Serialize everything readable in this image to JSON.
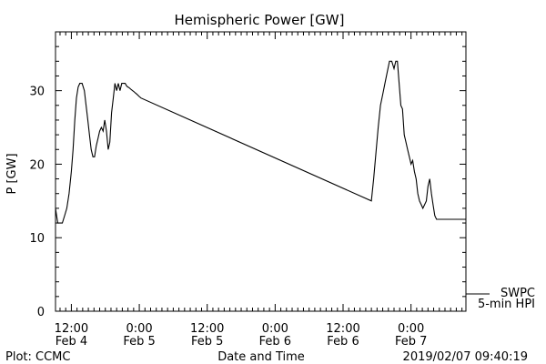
{
  "chart_data": {
    "type": "line",
    "title": "Hemispheric Power [GW]",
    "xlabel": "Date and Time",
    "ylabel": "P [GW]",
    "x_unit": "hours since 2019-02-04 00:00 UTC",
    "xlim": [
      9.2,
      81.7
    ],
    "ylim": [
      0,
      38
    ],
    "y_ticks": [
      0,
      10,
      20,
      30
    ],
    "x_ticks": [
      {
        "x": 12,
        "time": "12:00",
        "date": "Feb 4"
      },
      {
        "x": 24,
        "time": "0:00",
        "date": "Feb 5"
      },
      {
        "x": 36,
        "time": "12:00",
        "date": "Feb 5"
      },
      {
        "x": 48,
        "time": "0:00",
        "date": "Feb 6"
      },
      {
        "x": 60,
        "time": "12:00",
        "date": "Feb 6"
      },
      {
        "x": 72,
        "time": "0:00",
        "date": "Feb 7"
      }
    ],
    "legend": [
      {
        "label": "SWPC",
        "style": "line"
      },
      {
        "label": "5-min HPI",
        "style": "none"
      }
    ],
    "series": [
      {
        "name": "SWPC",
        "color": "#000000",
        "x": [
          9.2,
          9.4,
          9.6,
          10.0,
          10.4,
          10.8,
          11.2,
          11.6,
          12.0,
          12.3,
          12.6,
          12.9,
          13.2,
          13.5,
          13.9,
          14.3,
          14.6,
          14.9,
          15.2,
          15.5,
          15.8,
          16.1,
          16.4,
          16.7,
          17.0,
          17.3,
          17.6,
          17.9,
          18.2,
          18.5,
          18.8,
          19.1,
          19.4,
          19.7,
          20.0,
          20.3,
          20.6,
          20.9,
          21.2,
          21.5,
          21.8,
          22.0,
          22.2,
          22.5,
          22.8,
          23.0,
          23.3,
          23.6,
          24.0,
          24.3,
          65.0,
          65.4,
          65.8,
          66.2,
          66.6,
          67.0,
          67.4,
          67.8,
          68.2,
          68.6,
          69.0,
          69.3,
          69.6,
          69.9,
          70.2,
          70.5,
          70.8,
          71.1,
          71.4,
          71.7,
          72.0,
          72.3,
          72.6,
          72.9,
          73.2,
          73.5,
          73.8,
          74.1,
          74.4,
          74.7,
          75.0,
          75.3,
          75.6,
          75.9,
          76.2,
          76.5,
          76.8,
          77.1,
          77.4,
          77.7,
          78.0,
          78.3,
          78.6,
          78.9,
          79.2,
          79.5,
          79.8,
          80.1,
          80.4,
          80.7,
          81.0,
          81.3,
          81.7
        ],
        "y": [
          14,
          13,
          12,
          12,
          12,
          13,
          14,
          16,
          19,
          22,
          26,
          29,
          30.5,
          31,
          31,
          30,
          28,
          26,
          24,
          22,
          21,
          21,
          22.5,
          23.5,
          24.5,
          25,
          24.5,
          26,
          24.5,
          22,
          23,
          27,
          29,
          31,
          30,
          31,
          30,
          31,
          31,
          31,
          30.6,
          30.5,
          30.4,
          30.2,
          30.0,
          29.9,
          29.7,
          29.5,
          29.2,
          29.0,
          15,
          18,
          21.5,
          25,
          28,
          29.5,
          31,
          32.5,
          34,
          34,
          33,
          34,
          34,
          31,
          28,
          27.5,
          24,
          23,
          22,
          21,
          20,
          20.5,
          19,
          18,
          16,
          15,
          14.5,
          14,
          14.5,
          15,
          17,
          18,
          16,
          14.5,
          13,
          12.5,
          12.5,
          12.5,
          12.5,
          12.5,
          12.5,
          12.5,
          12.5,
          12.5,
          12.5,
          12.5,
          12.5,
          12.5,
          12.5,
          12.5,
          12.5,
          12.5,
          12.5
        ]
      }
    ]
  },
  "footer": {
    "left": "Plot: CCMC",
    "center": "Date and Time",
    "right": "2019/02/07 09:40:19"
  }
}
